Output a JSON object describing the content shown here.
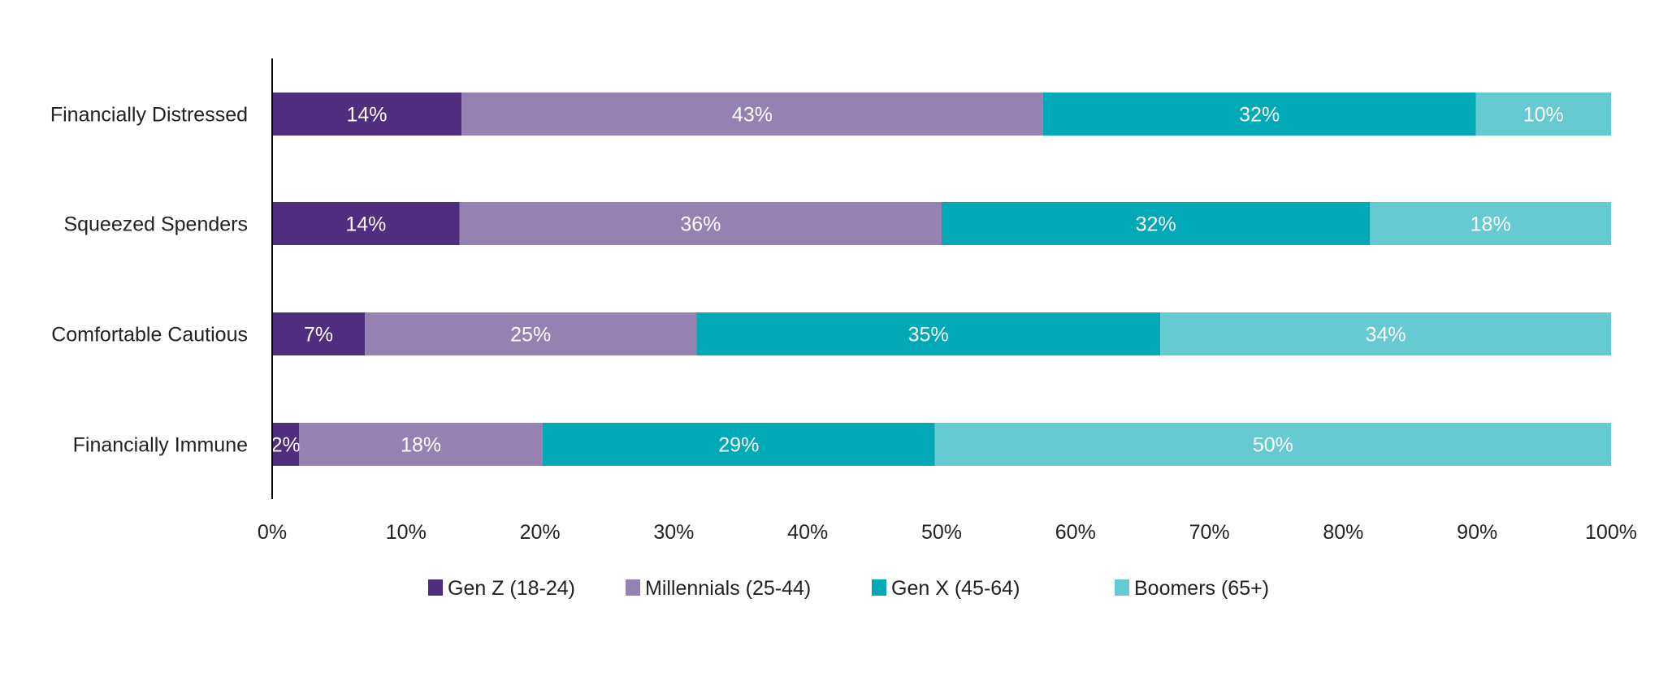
{
  "chart_data": {
    "type": "bar",
    "orientation": "horizontal",
    "stacked": true,
    "title": "",
    "xlabel": "",
    "ylabel": "",
    "xlim": [
      0,
      100
    ],
    "grid": false,
    "legend_position": "bottom",
    "categories": [
      "Financially Distressed",
      "Squeezed Spenders",
      "Comfortable Cautious",
      "Financially Immune"
    ],
    "x_ticks": [
      "0%",
      "10%",
      "20%",
      "30%",
      "40%",
      "50%",
      "60%",
      "70%",
      "80%",
      "90%",
      "100%"
    ],
    "series": [
      {
        "name": "Gen Z (18-24)",
        "color": "#4f2d7f",
        "values": [
          14,
          14,
          7,
          2
        ]
      },
      {
        "name": "Millennials (25-44)",
        "color": "#9682b2",
        "values": [
          43,
          36,
          25,
          18
        ]
      },
      {
        "name": "Gen X (45-64)",
        "color": "#00a9b5",
        "values": [
          32,
          32,
          35,
          29
        ]
      },
      {
        "name": "Boomers (65+)",
        "color": "#66cad2",
        "values": [
          10,
          18,
          34,
          50
        ]
      }
    ]
  }
}
